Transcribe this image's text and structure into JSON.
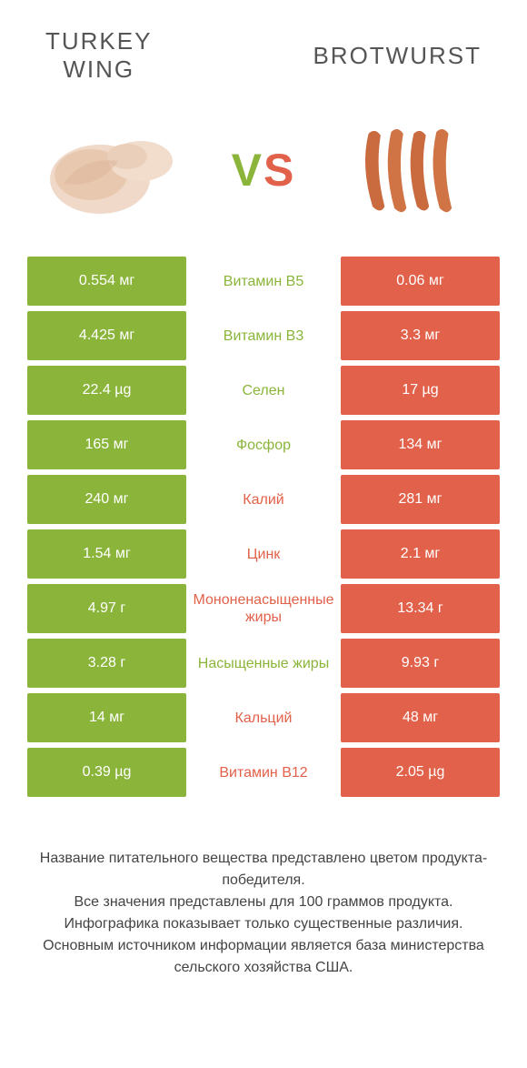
{
  "header": {
    "left_title": "TURKEY\nWING",
    "right_title": "BROTWURST",
    "vs_v": "V",
    "vs_s": "S"
  },
  "colors": {
    "green": "#8bb53a",
    "orange": "#e2614a",
    "background": "#ffffff"
  },
  "table": {
    "rows": [
      {
        "left": "0.554 мг",
        "mid": "Витамин B5",
        "right": "0.06 мг",
        "winner": "left"
      },
      {
        "left": "4.425 мг",
        "mid": "Витамин B3",
        "right": "3.3 мг",
        "winner": "left"
      },
      {
        "left": "22.4 µg",
        "mid": "Селен",
        "right": "17 µg",
        "winner": "left"
      },
      {
        "left": "165 мг",
        "mid": "Фосфор",
        "right": "134 мг",
        "winner": "left"
      },
      {
        "left": "240 мг",
        "mid": "Калий",
        "right": "281 мг",
        "winner": "right"
      },
      {
        "left": "1.54 мг",
        "mid": "Цинк",
        "right": "2.1 мг",
        "winner": "right"
      },
      {
        "left": "4.97 г",
        "mid": "Мононенасыщенные жиры",
        "right": "13.34 г",
        "winner": "right"
      },
      {
        "left": "3.28 г",
        "mid": "Насыщенные жиры",
        "right": "9.93 г",
        "winner": "left"
      },
      {
        "left": "14 мг",
        "mid": "Кальций",
        "right": "48 мг",
        "winner": "right"
      },
      {
        "left": "0.39 µg",
        "mid": "Витамин B12",
        "right": "2.05 µg",
        "winner": "right"
      }
    ]
  },
  "footer": {
    "line1": "Название питательного вещества представлено цветом продукта-победителя.",
    "line2": "Все значения представлены для 100 граммов продукта.",
    "line3": "Инфографика показывает только существенные различия.",
    "line4": "Основным источником информации является база министерства сельского хозяйства США."
  }
}
